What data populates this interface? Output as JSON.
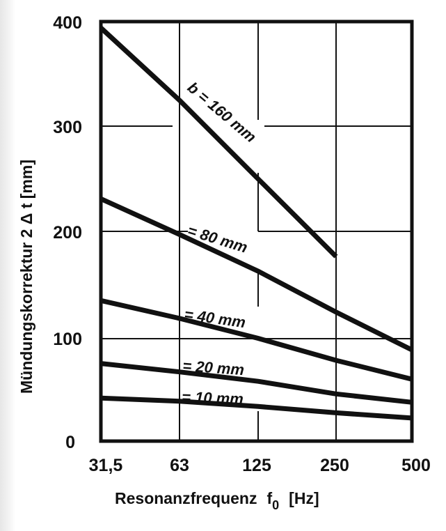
{
  "chart_data": {
    "type": "line",
    "title": "",
    "xlabel": "Resonanzfrequenz  f0  [Hz]",
    "xlabel_main": "Resonanzfrequenz",
    "xlabel_symbol": "f",
    "xlabel_subscript": "0",
    "xlabel_unit": "[Hz]",
    "ylabel": "Mündungskorrektur 2 Δ t [mm]",
    "x_scale": "log2",
    "x": [
      31.5,
      63,
      125,
      250,
      500
    ],
    "x_tick_labels": [
      "31,5",
      "63",
      "125",
      "250",
      "500"
    ],
    "y_ticks": [
      0,
      100,
      200,
      300,
      400
    ],
    "y_tick_labels": [
      "0",
      "100",
      "200",
      "300",
      "400"
    ],
    "ylim": [
      0,
      400
    ],
    "grid": true,
    "legend": "inline labels along curves",
    "series": [
      {
        "name": "b = 160 mm",
        "label": "b = 160 mm",
        "values": [
          394,
          325,
          250,
          176,
          null
        ]
      },
      {
        "name": "b = 80 mm",
        "label": "= 80 mm",
        "values": [
          231,
          197,
          162,
          123,
          87
        ]
      },
      {
        "name": "b = 40 mm",
        "label": "= 40 mm",
        "values": [
          134,
          117,
          98,
          77,
          59
        ]
      },
      {
        "name": "b = 20 mm",
        "label": "= 20 mm",
        "values": [
          74,
          66,
          57,
          45,
          37
        ]
      },
      {
        "name": "b = 10 mm",
        "label": "= 10 mm",
        "values": [
          41,
          38,
          33,
          27,
          22
        ]
      }
    ],
    "colors": {
      "line": "#111111",
      "background": "#ffffff"
    }
  }
}
